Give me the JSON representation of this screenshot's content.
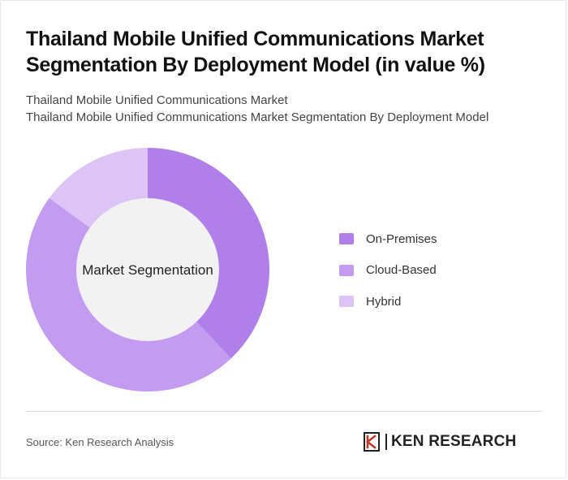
{
  "header": {
    "title": "Thailand Mobile Unified Communications Market Segmentation By Deployment Model (in value %)",
    "subtitle_line1": "Thailand Mobile Unified Communications Market",
    "subtitle_line2": "Thailand Mobile Unified Communications Market Segmentation By Deployment Model"
  },
  "chart_data": {
    "type": "pie",
    "variant": "donut",
    "center_label": "Market Segmentation",
    "categories": [
      "On-Premises",
      "Cloud-Based",
      "Hybrid"
    ],
    "values": [
      38,
      47,
      15
    ],
    "colors": [
      "#b07fea",
      "#c39bf0",
      "#dcc4f7"
    ],
    "legend_position": "right"
  },
  "footer": {
    "source": "Source: Ken Research Analysis",
    "logo_text": "KEN RESEARCH",
    "logo_icon": "ken-research-logo-icon"
  }
}
